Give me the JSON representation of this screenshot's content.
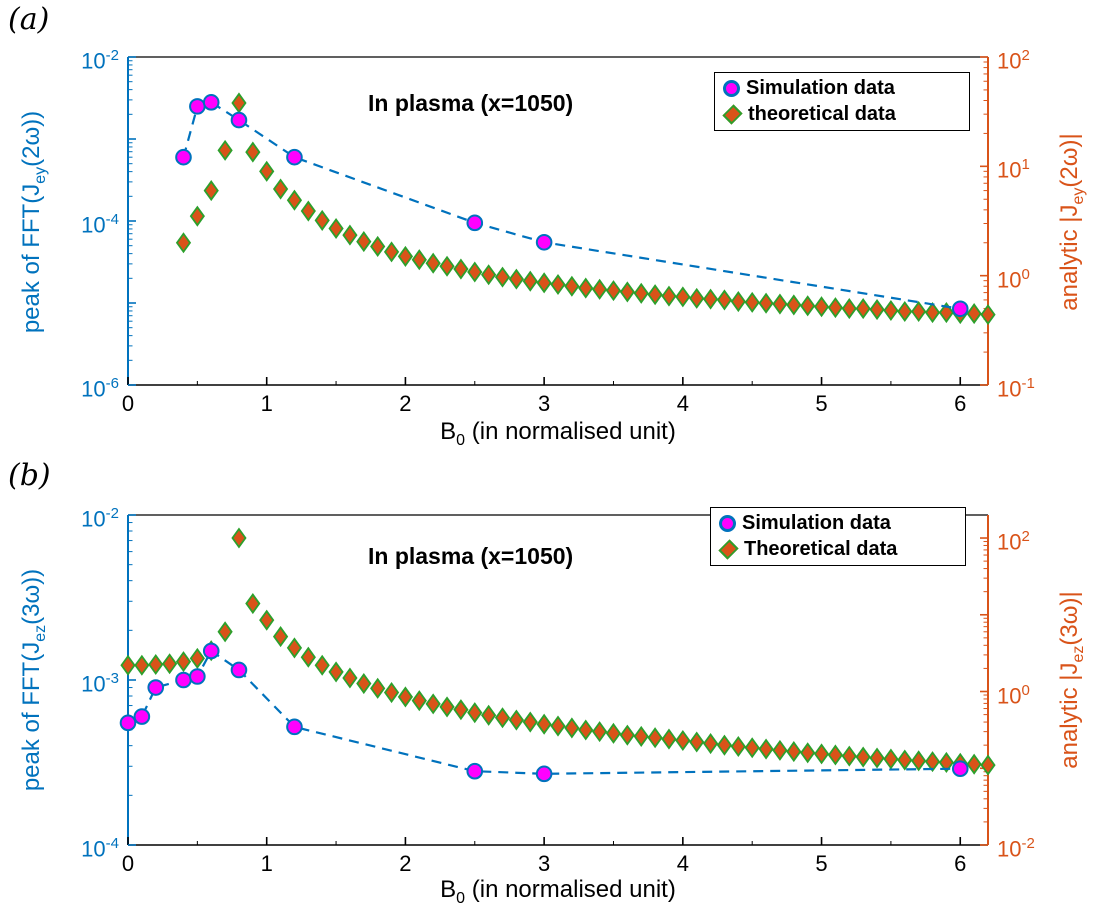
{
  "colors": {
    "left_axis": "#0072BD",
    "right_axis": "#D95319",
    "simulation_line": "#0072BD",
    "simulation_marker_fill": "#FF00FF",
    "simulation_marker_edge": "#0072BD",
    "theoretical_marker_fill": "#D95319",
    "theoretical_marker_edge": "#2CA02C",
    "axis_black": "#000000",
    "background": "#ffffff"
  },
  "chart_data": [
    {
      "type": "line",
      "panel_label": "(a)",
      "annotation": "In plasma (x=1050)",
      "xlabel": {
        "base": "B",
        "sub": "0",
        "rest": " (in normalised unit)"
      },
      "x_axis": {
        "min": 0,
        "max": 6.2,
        "major_ticks": [
          0,
          1,
          2,
          3,
          4,
          5,
          6
        ],
        "minor_step": 0.5
      },
      "y_left": {
        "scale": "log",
        "log_min": -6,
        "log_max": -2,
        "labeled_exponents": [
          -2,
          -4,
          -6
        ],
        "label": {
          "pre": "peak of FFT(J",
          "sub": "ey",
          "post": "(2ω))"
        }
      },
      "y_right": {
        "scale": "log",
        "log_min": -1,
        "log_max": 2,
        "labeled_exponents": [
          2,
          1,
          0,
          -1
        ],
        "label": {
          "pre": "analytic |J",
          "sub": "ey",
          "post": "(2ω)|"
        }
      },
      "legend": [
        {
          "label": "Simulation data",
          "series": "simulation"
        },
        {
          "label": "theoretical data",
          "series": "theoretical"
        }
      ],
      "series": [
        {
          "name": "theoretical data",
          "axis": "right",
          "marker": "diamond",
          "line": "none",
          "x": [
            0.4,
            0.5,
            0.6,
            0.7,
            0.8,
            0.9,
            1.0,
            1.1,
            1.2,
            1.3,
            1.4,
            1.5,
            1.6,
            1.7,
            1.8,
            1.9,
            2.0,
            2.1,
            2.2,
            2.3,
            2.4,
            2.5,
            2.6,
            2.7,
            2.8,
            2.9,
            3.0,
            3.1,
            3.2,
            3.3,
            3.4,
            3.5,
            3.6,
            3.7,
            3.8,
            3.9,
            4.0,
            4.1,
            4.2,
            4.3,
            4.4,
            4.5,
            4.6,
            4.7,
            4.8,
            4.9,
            5.0,
            5.1,
            5.2,
            5.3,
            5.4,
            5.5,
            5.6,
            5.7,
            5.8,
            5.9,
            6.0,
            6.1,
            6.2
          ],
          "y": [
            2.0,
            3.5,
            6.0,
            14,
            38,
            13.5,
            9.0,
            6.2,
            4.9,
            3.9,
            3.2,
            2.7,
            2.35,
            2.05,
            1.85,
            1.65,
            1.5,
            1.4,
            1.3,
            1.22,
            1.15,
            1.08,
            1.02,
            0.97,
            0.93,
            0.89,
            0.86,
            0.83,
            0.8,
            0.77,
            0.75,
            0.73,
            0.71,
            0.69,
            0.67,
            0.65,
            0.64,
            0.62,
            0.61,
            0.6,
            0.58,
            0.57,
            0.56,
            0.55,
            0.54,
            0.53,
            0.52,
            0.51,
            0.5,
            0.5,
            0.49,
            0.48,
            0.47,
            0.47,
            0.46,
            0.46,
            0.45,
            0.45,
            0.44
          ]
        },
        {
          "name": "Simulation data",
          "axis": "left",
          "marker": "circle",
          "line": "dashed",
          "x": [
            0.4,
            0.5,
            0.6,
            0.8,
            1.2,
            2.5,
            3.0,
            6.0
          ],
          "y": [
            0.0006,
            0.0025,
            0.0028,
            0.0017,
            0.0006,
            9.5e-05,
            5.5e-05,
            8.5e-06
          ]
        }
      ]
    },
    {
      "type": "line",
      "panel_label": "(b)",
      "annotation": "In plasma (x=1050)",
      "xlabel": {
        "base": "B",
        "sub": "0",
        "rest": " (in normalised unit)"
      },
      "x_axis": {
        "min": 0,
        "max": 6.2,
        "major_ticks": [
          0,
          1,
          2,
          3,
          4,
          5,
          6
        ],
        "minor_step": 0.5
      },
      "y_left": {
        "scale": "log",
        "log_min": -4,
        "log_max": -2,
        "labeled_exponents": [
          -2,
          -3,
          -4
        ],
        "label": {
          "pre": "peak of FFT(J",
          "sub": "ez",
          "post": "(3ω))"
        }
      },
      "y_right": {
        "scale": "log",
        "log_min": -2,
        "log_max": 2.3,
        "labeled_exponents": [
          2,
          0,
          -2
        ],
        "label": {
          "pre": "analytic |J",
          "sub": "ez",
          "post": "(3ω)|"
        }
      },
      "legend": [
        {
          "label": "Simulation data",
          "series": "simulation"
        },
        {
          "label": "Theoretical data",
          "series": "theoretical"
        }
      ],
      "series": [
        {
          "name": "Theoretical data",
          "axis": "right",
          "marker": "diamond",
          "line": "none",
          "x": [
            0.0,
            0.1,
            0.2,
            0.3,
            0.4,
            0.5,
            0.6,
            0.7,
            0.8,
            0.9,
            1.0,
            1.1,
            1.2,
            1.3,
            1.4,
            1.5,
            1.6,
            1.7,
            1.8,
            1.9,
            2.0,
            2.1,
            2.2,
            2.3,
            2.4,
            2.5,
            2.6,
            2.7,
            2.8,
            2.9,
            3.0,
            3.1,
            3.2,
            3.3,
            3.4,
            3.5,
            3.6,
            3.7,
            3.8,
            3.9,
            4.0,
            4.1,
            4.2,
            4.3,
            4.4,
            4.5,
            4.6,
            4.7,
            4.8,
            4.9,
            5.0,
            5.1,
            5.2,
            5.3,
            5.4,
            5.5,
            5.6,
            5.7,
            5.8,
            5.9,
            6.0,
            6.1,
            6.2
          ],
          "y": [
            2.2,
            2.2,
            2.25,
            2.3,
            2.45,
            2.7,
            3.4,
            6.0,
            100,
            14,
            8.5,
            5.2,
            3.7,
            2.8,
            2.2,
            1.8,
            1.5,
            1.27,
            1.1,
            0.97,
            0.85,
            0.76,
            0.69,
            0.63,
            0.58,
            0.53,
            0.49,
            0.455,
            0.425,
            0.4,
            0.375,
            0.355,
            0.335,
            0.315,
            0.3,
            0.285,
            0.27,
            0.26,
            0.25,
            0.24,
            0.23,
            0.22,
            0.21,
            0.2,
            0.192,
            0.185,
            0.178,
            0.171,
            0.165,
            0.159,
            0.154,
            0.149,
            0.144,
            0.14,
            0.136,
            0.132,
            0.128,
            0.125,
            0.122,
            0.119,
            0.116,
            0.113,
            0.11
          ]
        },
        {
          "name": "Simulation data",
          "axis": "left",
          "marker": "circle",
          "line": "dashed",
          "x": [
            0.0,
            0.1,
            0.2,
            0.4,
            0.5,
            0.6,
            0.8,
            1.2,
            2.5,
            3.0,
            6.0
          ],
          "y": [
            0.00055,
            0.0006,
            0.0009,
            0.001,
            0.00105,
            0.0015,
            0.00115,
            0.00052,
            0.00028,
            0.00027,
            0.00029
          ]
        }
      ]
    }
  ]
}
